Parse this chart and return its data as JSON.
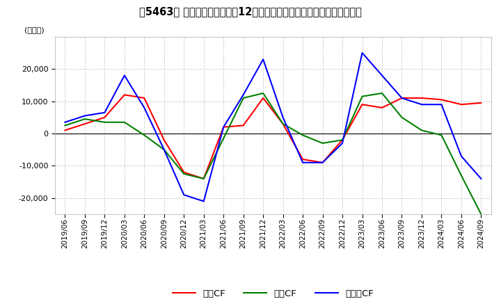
{
  "title": "【5463】 キャッシュフローの12か月移動合計の対前年同期増減額の推移",
  "ylabel": "(百万円)",
  "ylim": [
    -25000,
    30000
  ],
  "yticks": [
    -20000,
    -10000,
    0,
    10000,
    20000
  ],
  "legend_labels": [
    "営業CF",
    "投資CF",
    "フリーCF"
  ],
  "colors": {
    "営業CF": "#ff0000",
    "投資CF": "#008000",
    "フリーCF": "#0000ff"
  },
  "dates": [
    "2019/06",
    "2019/09",
    "2019/12",
    "2020/03",
    "2020/06",
    "2020/09",
    "2020/12",
    "2021/03",
    "2021/06",
    "2021/09",
    "2021/12",
    "2022/03",
    "2022/06",
    "2022/09",
    "2022/12",
    "2023/03",
    "2023/06",
    "2023/09",
    "2023/12",
    "2024/03",
    "2024/06",
    "2024/09"
  ],
  "営業CF": [
    1000,
    3000,
    5000,
    12000,
    11000,
    -2000,
    -12000,
    -14000,
    2000,
    2500,
    11000,
    3000,
    -8000,
    -9000,
    -2000,
    9000,
    8000,
    11000,
    11000,
    10500,
    9000,
    9500
  ],
  "投資CF": [
    2500,
    4500,
    3500,
    3500,
    -500,
    -5000,
    -12500,
    -14000,
    -1500,
    11000,
    12500,
    3000,
    -500,
    -3000,
    -2000,
    11500,
    12500,
    5000,
    1000,
    -500,
    -13000,
    -25000
  ],
  "フリーCF": [
    3500,
    5500,
    6500,
    18000,
    8000,
    -5000,
    -19000,
    -21000,
    2000,
    12000,
    23000,
    5000,
    -9000,
    -9000,
    -3000,
    25000,
    18000,
    11000,
    9000,
    9000,
    -7000,
    -14000
  ]
}
